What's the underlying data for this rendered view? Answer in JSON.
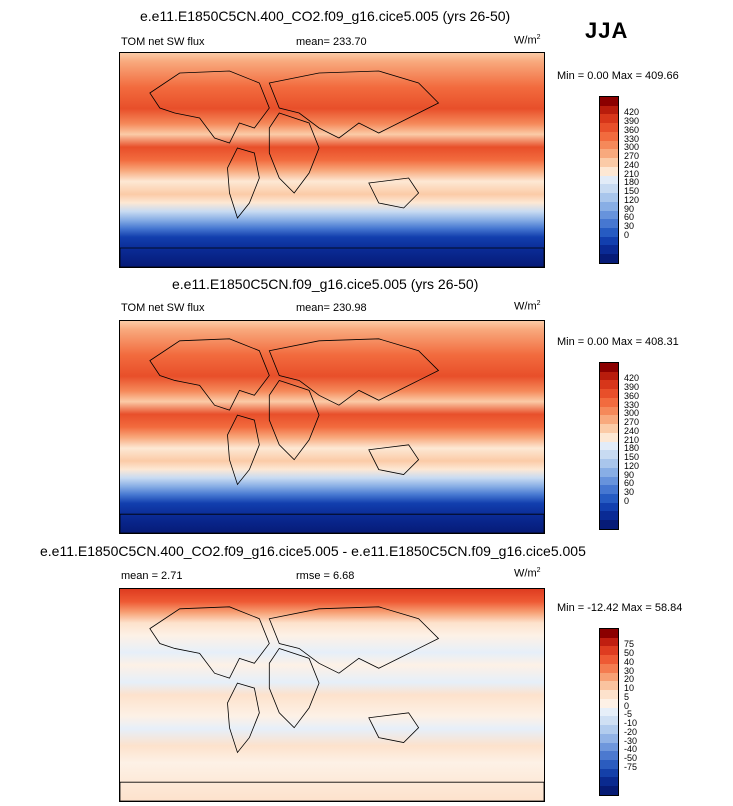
{
  "season": "JJA",
  "panels": [
    {
      "title": "e.e11.E1850C5CN.400_CO2.f09_g16.cice5.005 (yrs 26-50)",
      "left_label": "TOM net SW flux",
      "center_label": "mean= 233.70",
      "unit": "W/m",
      "unit_exp": "2",
      "minmax": "Min =   0.00 Max = 409.66",
      "colors": [
        "#8b0000",
        "#b81c0c",
        "#d7361a",
        "#e84f2a",
        "#f26b3e",
        "#f5895a",
        "#f8a97d",
        "#fbcba7",
        "#fde8d4",
        "#e2ecf8",
        "#c8dbf2",
        "#a9c6ec",
        "#88aee5",
        "#6793dc",
        "#4677d1",
        "#265bc2",
        "#123fae",
        "#0a2a94",
        "#061b77"
      ],
      "labels": [
        "420",
        "390",
        "360",
        "330",
        "300",
        "270",
        "240",
        "210",
        "180",
        "150",
        "120",
        "90",
        "60",
        "30",
        "0"
      ]
    },
    {
      "title": "e.e11.E1850C5CN.f09_g16.cice5.005 (yrs 26-50)",
      "left_label": "TOM net SW flux",
      "center_label": "mean= 230.98",
      "unit": "W/m",
      "unit_exp": "2",
      "minmax": "Min =   0.00 Max = 408.31",
      "colors": [
        "#8b0000",
        "#b81c0c",
        "#d7361a",
        "#e84f2a",
        "#f26b3e",
        "#f5895a",
        "#f8a97d",
        "#fbcba7",
        "#fde8d4",
        "#e2ecf8",
        "#c8dbf2",
        "#a9c6ec",
        "#88aee5",
        "#6793dc",
        "#4677d1",
        "#265bc2",
        "#123fae",
        "#0a2a94",
        "#061b77"
      ],
      "labels": [
        "420",
        "390",
        "360",
        "330",
        "300",
        "270",
        "240",
        "210",
        "180",
        "150",
        "120",
        "90",
        "60",
        "30",
        "0"
      ]
    },
    {
      "title": "e.e11.E1850C5CN.400_CO2.f09_g16.cice5.005 - e.e11.E1850C5CN.f09_g16.cice5.005",
      "left_label": "mean =   2.71",
      "center_label": "rmse =   6.68",
      "unit": "W/m",
      "unit_exp": "2",
      "minmax": "Min = -12.42 Max =  58.84",
      "colors": [
        "#8b0000",
        "#c01e10",
        "#de3c20",
        "#ee5a34",
        "#f47c50",
        "#f7a074",
        "#fac39f",
        "#fde2cc",
        "#fdf1e6",
        "#e6eff9",
        "#cfe0f4",
        "#b2ccee",
        "#92b3e6",
        "#6f97dc",
        "#4c79cf",
        "#2b5cbf",
        "#1440a9",
        "#0a2a8f",
        "#061b74"
      ],
      "labels": [
        "75",
        "50",
        "40",
        "30",
        "20",
        "10",
        "5",
        "0",
        "-5",
        "-10",
        "-20",
        "-30",
        "-40",
        "-50",
        "-75"
      ]
    }
  ],
  "chart_data": [
    {
      "type": "heatmap",
      "title": "e.e11.E1850C5CN.400_CO2.f09_g16.cice5.005 (yrs 26-50)",
      "variable": "TOM net SW flux",
      "mean": 233.7,
      "min": 0.0,
      "max": 409.66,
      "unit": "W/m2",
      "colorbar_levels": [
        0,
        30,
        60,
        90,
        120,
        150,
        180,
        210,
        240,
        270,
        300,
        330,
        360,
        390,
        420
      ]
    },
    {
      "type": "heatmap",
      "title": "e.e11.E1850C5CN.f09_g16.cice5.005 (yrs 26-50)",
      "variable": "TOM net SW flux",
      "mean": 230.98,
      "min": 0.0,
      "max": 408.31,
      "unit": "W/m2",
      "colorbar_levels": [
        0,
        30,
        60,
        90,
        120,
        150,
        180,
        210,
        240,
        270,
        300,
        330,
        360,
        390,
        420
      ]
    },
    {
      "type": "heatmap",
      "title": "e.e11.E1850C5CN.400_CO2.f09_g16.cice5.005 - e.e11.E1850C5CN.f09_g16.cice5.005",
      "mean": 2.71,
      "rmse": 6.68,
      "min": -12.42,
      "max": 58.84,
      "unit": "W/m2",
      "colorbar_levels": [
        -75,
        -50,
        -40,
        -30,
        -20,
        -10,
        -5,
        0,
        5,
        10,
        20,
        30,
        40,
        50,
        75
      ]
    }
  ]
}
